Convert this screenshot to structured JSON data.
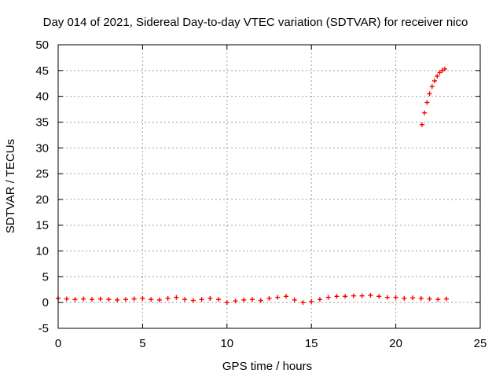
{
  "chart_data": {
    "type": "scatter",
    "title": "Day 014 of 2021, Sidereal Day-to-day VTEC variation (SDTVAR) for receiver nico",
    "xlabel": "GPS time / hours",
    "ylabel": "SDTVAR / TECUs",
    "xlim": [
      0,
      25
    ],
    "ylim": [
      -5,
      50
    ],
    "xticks": [
      "0",
      "5",
      "10",
      "15",
      "20",
      "25"
    ],
    "yticks": [
      "-5",
      "0",
      "5",
      "10",
      "15",
      "20",
      "25",
      "30",
      "35",
      "40",
      "45",
      "50"
    ],
    "grid": true,
    "marker": "plus",
    "color": "#ff0000",
    "series": [
      {
        "x": [
          0.0,
          0.5,
          1.0,
          1.5,
          2.0,
          2.5,
          3.0,
          3.5,
          4.0,
          4.5,
          5.0,
          5.5,
          6.0,
          6.5,
          7.0,
          7.5,
          8.0,
          8.5,
          9.0,
          9.5,
          10.0,
          10.5,
          11.0,
          11.5,
          12.0,
          12.5,
          13.0,
          13.5,
          14.0,
          14.5,
          15.0,
          15.5,
          16.0,
          16.5,
          17.0,
          17.5,
          18.0,
          18.5,
          19.0,
          19.5,
          20.0,
          20.5,
          21.0,
          21.5,
          22.0,
          22.5,
          23.0
        ],
        "y": [
          0.8,
          0.7,
          0.6,
          0.7,
          0.6,
          0.7,
          0.6,
          0.5,
          0.6,
          0.7,
          0.8,
          0.6,
          0.5,
          0.8,
          1.0,
          0.6,
          0.4,
          0.6,
          0.8,
          0.6,
          0.0,
          0.3,
          0.5,
          0.6,
          0.4,
          0.8,
          1.0,
          1.2,
          0.5,
          0.0,
          0.2,
          0.6,
          1.0,
          1.2,
          1.2,
          1.3,
          1.3,
          1.4,
          1.2,
          1.0,
          1.0,
          0.8,
          0.9,
          0.8,
          0.7,
          0.6,
          0.7
        ]
      },
      {
        "x": [
          21.55,
          21.7,
          21.85,
          22.0,
          22.15,
          22.3,
          22.45,
          22.6,
          22.75,
          22.9
        ],
        "y": [
          34.5,
          36.8,
          38.8,
          40.5,
          41.9,
          43.0,
          43.9,
          44.6,
          45.0,
          45.3
        ]
      }
    ]
  }
}
